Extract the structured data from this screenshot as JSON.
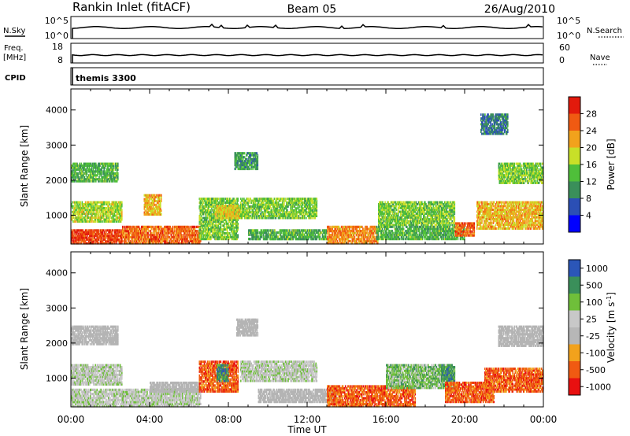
{
  "header": {
    "station": "Rankin Inlet (fitACF)",
    "beam": "Beam 05",
    "date": "26/Aug/2010"
  },
  "strips": {
    "nsky_label": "N.Sky",
    "nsky_ticks": [
      "10^5",
      "10^0"
    ],
    "nsearch_label": "N.Search",
    "nsearch_ticks": [
      "10^5",
      "10^0"
    ],
    "freq_label": "Freq.",
    "freq_unit": "[MHz]",
    "freq_ticks": [
      "18",
      "8"
    ],
    "nave_label": "Nave",
    "nave_ticks": [
      "60",
      "0"
    ],
    "cpid_label": "CPID",
    "cpid_value": "themis 3300"
  },
  "x_axis": {
    "label": "Time UT",
    "ticks": [
      "00:00",
      "04:00",
      "08:00",
      "12:00",
      "16:00",
      "20:00",
      "00:00"
    ]
  },
  "colors": {
    "power": [
      "#0000ff",
      "#2b4fb5",
      "#3a8f5a",
      "#4fbf3a",
      "#c8e028",
      "#f2a21c",
      "#f05a12",
      "#e21a0c"
    ],
    "velocity": [
      "#e81010",
      "#f05a12",
      "#f2a21c",
      "#b7b7b7",
      "#c8c8c8",
      "#6fbf3a",
      "#3a8f5a",
      "#2b56b8"
    ],
    "scatter_gray": "#b4b4b4"
  },
  "chart_data": [
    {
      "type": "heatmap",
      "panel": "power",
      "xlabel": "Time UT",
      "ylabel": "Slant Range [km]",
      "xlim_hours": [
        0,
        24
      ],
      "ylim_km": [
        180,
        4600
      ],
      "y_ticks": [
        "1000",
        "2000",
        "3000",
        "4000"
      ],
      "colorbar": {
        "label": "Power [dB]",
        "ticks": [
          "4",
          "8",
          "12",
          "16",
          "20",
          "24",
          "28"
        ],
        "range": [
          0,
          30
        ]
      },
      "echo_regions": [
        {
          "t0": 0.0,
          "t1": 2.4,
          "r0": 1950,
          "r1": 2500,
          "value": 12
        },
        {
          "t0": 0.0,
          "t1": 2.6,
          "r0": 800,
          "r1": 1400,
          "value": 16
        },
        {
          "t0": 0.0,
          "t1": 2.6,
          "r0": 180,
          "r1": 600,
          "value": 26
        },
        {
          "t0": 2.6,
          "t1": 6.6,
          "r0": 180,
          "r1": 700,
          "value": 24
        },
        {
          "t0": 3.7,
          "t1": 4.6,
          "r0": 1000,
          "r1": 1600,
          "value": 20
        },
        {
          "t0": 6.5,
          "t1": 8.5,
          "r0": 300,
          "r1": 1500,
          "value": 14
        },
        {
          "t0": 7.3,
          "t1": 8.6,
          "r0": 900,
          "r1": 1300,
          "value": 18
        },
        {
          "t0": 8.3,
          "t1": 9.5,
          "r0": 2300,
          "r1": 2800,
          "value": 10
        },
        {
          "t0": 8.6,
          "t1": 12.5,
          "r0": 900,
          "r1": 1500,
          "value": 14
        },
        {
          "t0": 9.0,
          "t1": 13.0,
          "r0": 300,
          "r1": 600,
          "value": 12
        },
        {
          "t0": 13.0,
          "t1": 15.6,
          "r0": 180,
          "r1": 700,
          "value": 22
        },
        {
          "t0": 15.6,
          "t1": 19.5,
          "r0": 700,
          "r1": 1400,
          "value": 14
        },
        {
          "t0": 15.5,
          "t1": 20.0,
          "r0": 300,
          "r1": 700,
          "value": 12
        },
        {
          "t0": 19.5,
          "t1": 20.5,
          "r0": 400,
          "r1": 800,
          "value": 24
        },
        {
          "t0": 20.6,
          "t1": 24.0,
          "r0": 600,
          "r1": 1400,
          "value": 20
        },
        {
          "t0": 21.7,
          "t1": 24.0,
          "r0": 1900,
          "r1": 2500,
          "value": 14
        },
        {
          "t0": 20.8,
          "t1": 22.2,
          "r0": 3300,
          "r1": 3900,
          "value": 8
        }
      ]
    },
    {
      "type": "heatmap",
      "panel": "velocity",
      "xlabel": "Time UT",
      "ylabel": "Slant Range [km]",
      "xlim_hours": [
        0,
        24
      ],
      "ylim_km": [
        180,
        4600
      ],
      "y_ticks": [
        "1000",
        "2000",
        "3000",
        "4000"
      ],
      "colorbar": {
        "label": "Velocity [m s^-1]",
        "ticks": [
          "1000",
          "500",
          "100",
          "25",
          "-25",
          "-100",
          "-500",
          "-1000"
        ]
      },
      "echo_regions": [
        {
          "t0": 0.0,
          "t1": 2.4,
          "r0": 1950,
          "r1": 2500,
          "kind": "gs"
        },
        {
          "t0": 0.0,
          "t1": 2.6,
          "r0": 800,
          "r1": 1400,
          "value": 80
        },
        {
          "t0": 0.0,
          "t1": 6.6,
          "r0": 180,
          "r1": 700,
          "value": 60
        },
        {
          "t0": 4.0,
          "t1": 6.5,
          "r0": 600,
          "r1": 900,
          "kind": "gs"
        },
        {
          "t0": 6.5,
          "t1": 8.5,
          "r0": 600,
          "r1": 1500,
          "value": -150
        },
        {
          "t0": 7.4,
          "t1": 8.0,
          "r0": 900,
          "r1": 1400,
          "value": 700
        },
        {
          "t0": 8.4,
          "t1": 9.5,
          "r0": 2200,
          "r1": 2700,
          "kind": "gs"
        },
        {
          "t0": 8.6,
          "t1": 12.5,
          "r0": 900,
          "r1": 1500,
          "value": 90
        },
        {
          "t0": 9.5,
          "t1": 13.5,
          "r0": 300,
          "r1": 700,
          "kind": "gs"
        },
        {
          "t0": 13.0,
          "t1": 17.5,
          "r0": 180,
          "r1": 800,
          "value": -300
        },
        {
          "t0": 16.0,
          "t1": 19.5,
          "r0": 700,
          "r1": 1400,
          "value": 150
        },
        {
          "t0": 18.8,
          "t1": 19.5,
          "r0": 900,
          "r1": 1400,
          "value": 800
        },
        {
          "t0": 19.0,
          "t1": 21.5,
          "r0": 300,
          "r1": 900,
          "value": -400
        },
        {
          "t0": 21.7,
          "t1": 24.0,
          "r0": 1900,
          "r1": 2500,
          "kind": "gs"
        },
        {
          "t0": 21.0,
          "t1": 24.0,
          "r0": 600,
          "r1": 1300,
          "value": -150
        }
      ]
    }
  ]
}
